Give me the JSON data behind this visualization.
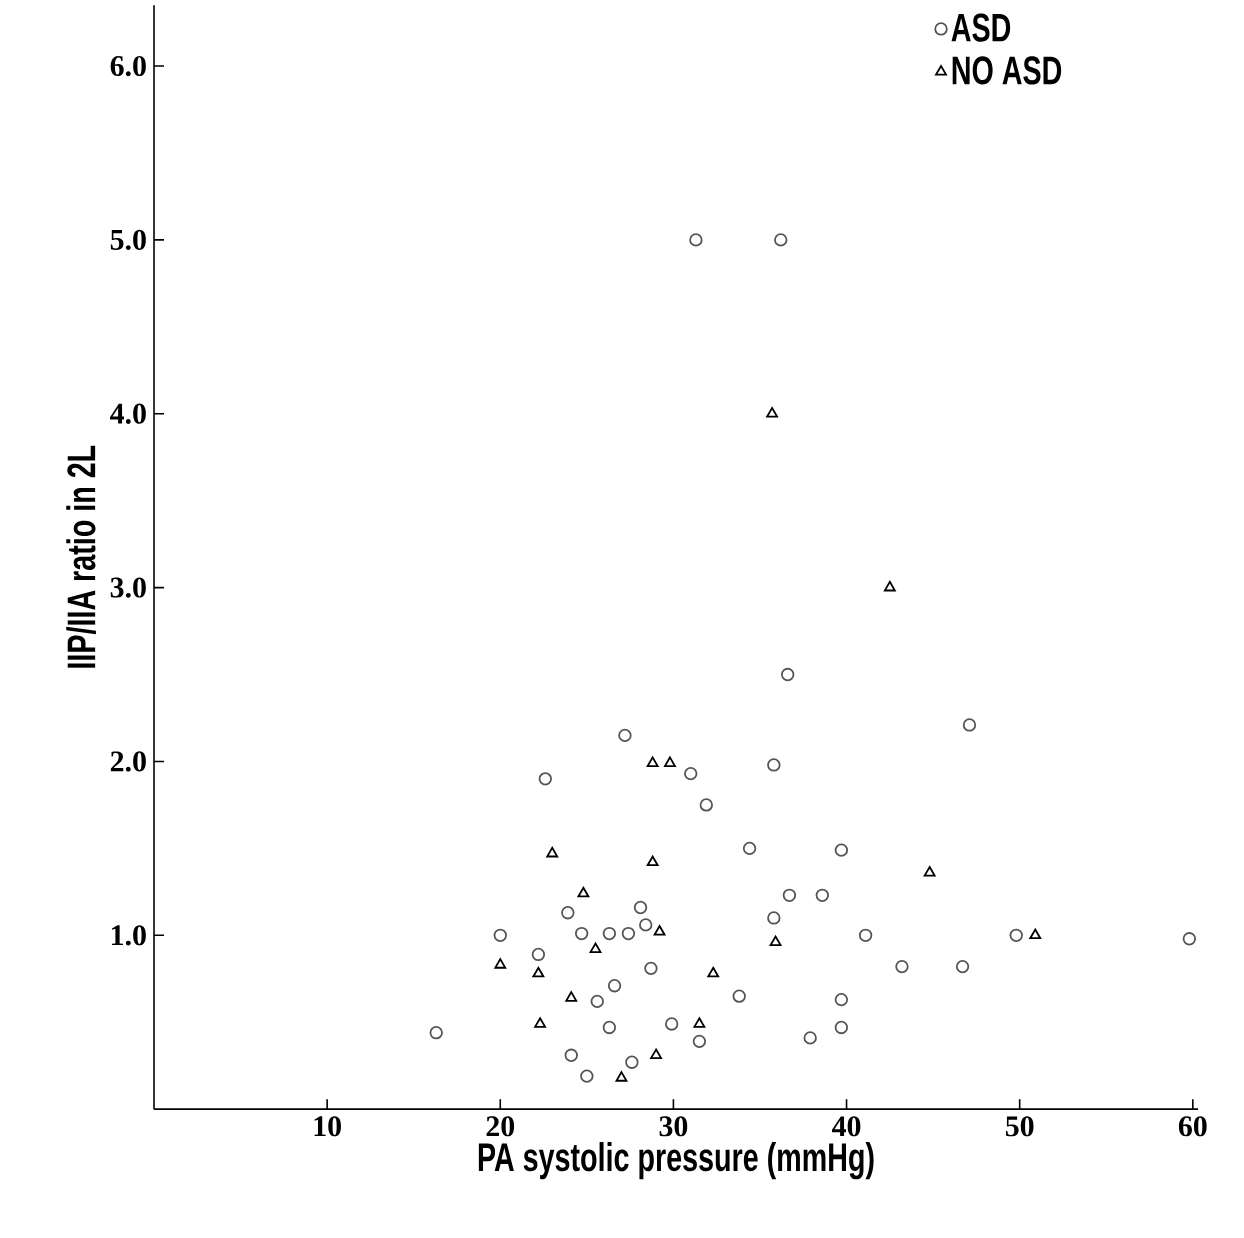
{
  "chart_data": {
    "type": "scatter",
    "xlabel": "PA systolic pressure (mmHg)",
    "ylabel": "IIP/IIA ratio in 2L",
    "xlim": [
      0,
      60.3
    ],
    "ylim": [
      0,
      6.35
    ],
    "xticks": [
      10,
      20,
      30,
      40,
      50,
      60
    ],
    "yticks": [
      {
        "value": 1,
        "label": "1.0"
      },
      {
        "value": 2,
        "label": "2.0"
      },
      {
        "value": 3,
        "label": "3.0"
      },
      {
        "value": 4,
        "label": "4.0"
      },
      {
        "value": 5,
        "label": "5.0"
      },
      {
        "value": 6,
        "label": "6.0"
      }
    ],
    "legend": "top right",
    "grid": false,
    "series": [
      {
        "name": "ASD",
        "color": "#555555",
        "marker": "circle",
        "x": [
          31.3,
          36.2,
          36.6,
          47.1,
          27.2,
          35.8,
          31.0,
          22.6,
          31.9,
          34.4,
          23.9,
          28.1,
          24.7,
          26.3,
          27.4,
          28.4,
          20.0,
          22.2,
          28.7,
          26.6,
          25.6,
          33.8,
          16.3,
          26.3,
          29.9,
          31.5,
          24.1,
          27.6,
          25.0,
          39.7,
          38.6,
          36.7,
          35.8,
          41.1,
          49.8,
          59.8,
          43.2,
          46.7,
          39.7,
          39.7,
          37.9
        ],
        "values": [
          5.0,
          5.0,
          2.5,
          2.21,
          2.15,
          1.98,
          1.93,
          1.9,
          1.75,
          1.5,
          1.13,
          1.16,
          1.01,
          1.01,
          1.01,
          1.06,
          1.0,
          0.89,
          0.81,
          0.71,
          0.62,
          0.65,
          0.44,
          0.47,
          0.49,
          0.39,
          0.31,
          0.27,
          0.19,
          1.49,
          1.23,
          1.23,
          1.1,
          1.0,
          1.0,
          0.98,
          0.82,
          0.82,
          0.63,
          0.47,
          0.41
        ]
      },
      {
        "name": "NO ASD",
        "color": "#000000",
        "marker": "triangle",
        "x": [
          35.7,
          42.5,
          28.8,
          29.8,
          23.0,
          28.8,
          24.8,
          29.2,
          25.5,
          20.0,
          22.2,
          32.3,
          24.1,
          22.3,
          31.5,
          29.0,
          27.0,
          44.8,
          35.9,
          50.9
        ],
        "values": [
          4.0,
          3.0,
          1.99,
          1.99,
          1.47,
          1.42,
          1.24,
          1.02,
          0.92,
          0.83,
          0.78,
          0.78,
          0.64,
          0.49,
          0.49,
          0.31,
          0.18,
          1.36,
          0.96,
          1.0
        ]
      }
    ]
  }
}
